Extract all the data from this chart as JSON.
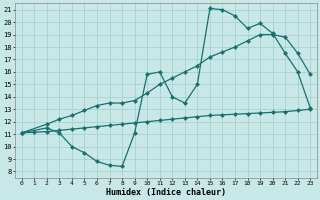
{
  "xlabel": "Humidex (Indice chaleur)",
  "xlim": [
    -0.5,
    23.5
  ],
  "ylim": [
    7.5,
    21.5
  ],
  "xticks": [
    0,
    1,
    2,
    3,
    4,
    5,
    6,
    7,
    8,
    9,
    10,
    11,
    12,
    13,
    14,
    15,
    16,
    17,
    18,
    19,
    20,
    21,
    22,
    23
  ],
  "yticks": [
    8,
    9,
    10,
    11,
    12,
    13,
    14,
    15,
    16,
    17,
    18,
    19,
    20,
    21
  ],
  "bg_color": "#c8e8e8",
  "grid_color": "#aad0d0",
  "line_color": "#1a7070",
  "line1_x": [
    0,
    2,
    3,
    4,
    5,
    6,
    7,
    8,
    9,
    10,
    11,
    12,
    13,
    14,
    15,
    16,
    17,
    18,
    19,
    20,
    21,
    22,
    23
  ],
  "line1_y": [
    11.1,
    11.5,
    11.1,
    10.0,
    9.5,
    8.8,
    8.5,
    8.4,
    11.1,
    15.8,
    16.0,
    14.0,
    13.5,
    15.0,
    21.1,
    21.0,
    20.5,
    19.5,
    19.9,
    19.1,
    17.5,
    16.0,
    13.1
  ],
  "line2_x": [
    0,
    1,
    2,
    3,
    4,
    5,
    6,
    7,
    8,
    9,
    10,
    11,
    12,
    13,
    14,
    15,
    16,
    17,
    18,
    19,
    20,
    21,
    22,
    23
  ],
  "line2_y": [
    11.1,
    11.15,
    11.2,
    11.3,
    11.4,
    11.5,
    11.6,
    11.7,
    11.8,
    11.9,
    12.0,
    12.1,
    12.2,
    12.3,
    12.4,
    12.5,
    12.55,
    12.6,
    12.65,
    12.7,
    12.75,
    12.8,
    12.9,
    13.0
  ],
  "line3_x": [
    0,
    2,
    3,
    4,
    5,
    6,
    7,
    8,
    9,
    10,
    11,
    12,
    13,
    14,
    15,
    16,
    17,
    18,
    19,
    20,
    21,
    22,
    23
  ],
  "line3_y": [
    11.1,
    11.8,
    12.2,
    12.5,
    12.9,
    13.3,
    13.5,
    13.5,
    13.7,
    14.3,
    15.0,
    15.5,
    16.0,
    16.5,
    17.2,
    17.6,
    18.0,
    18.5,
    19.0,
    19.0,
    18.8,
    17.5,
    15.8
  ],
  "marker_size": 2.5,
  "line_width": 0.9
}
